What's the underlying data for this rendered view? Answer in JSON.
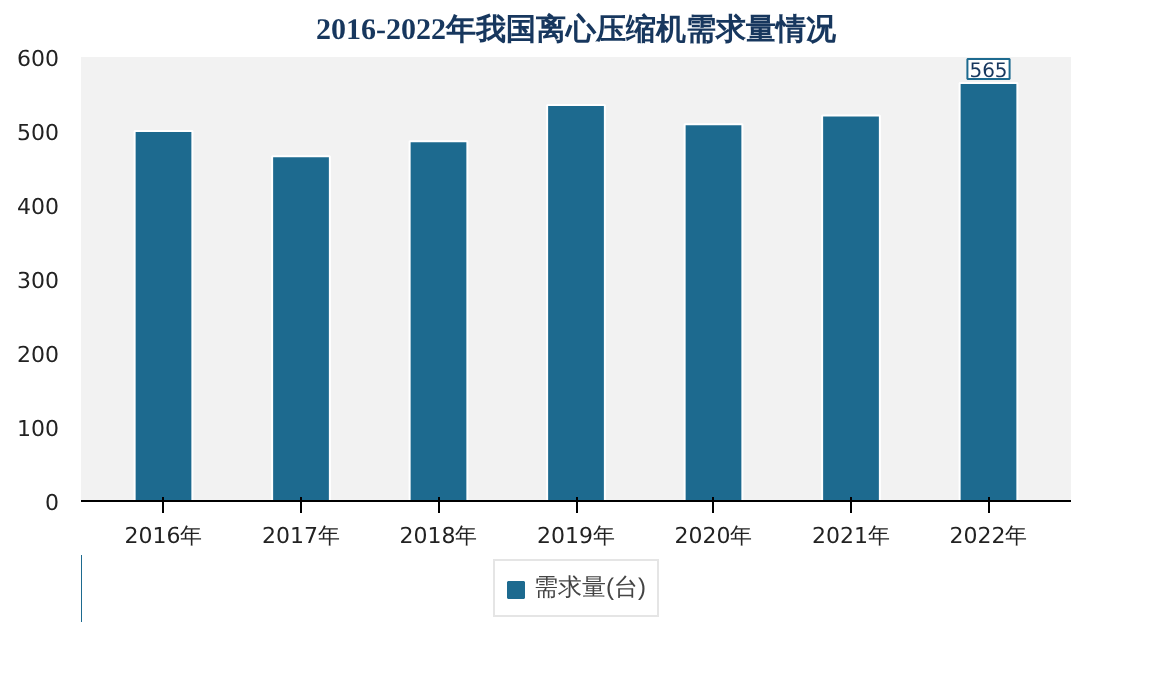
{
  "chart_data": {
    "type": "bar",
    "title": "2016-2022年我国离心压缩机需求量情况",
    "categories": [
      "2016年",
      "2017年",
      "2018年",
      "2019年",
      "2020年",
      "2021年",
      "2022年"
    ],
    "series": [
      {
        "name": "需求量(台)",
        "color": "#1d6a8f",
        "values": [
          500,
          466,
          486,
          535,
          509,
          521,
          565
        ]
      }
    ],
    "value_labels": [
      null,
      null,
      null,
      null,
      null,
      null,
      "565"
    ],
    "ylim": [
      0,
      600
    ],
    "yticks": [
      0,
      100,
      200,
      300,
      400,
      500,
      600
    ],
    "grid": false,
    "legend": "bottom"
  }
}
